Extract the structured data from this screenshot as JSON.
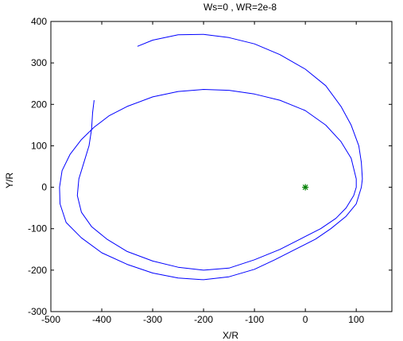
{
  "chart_data": {
    "type": "line",
    "title": "Ws=0    ,    WR=2e-8",
    "xlabel": "X/R",
    "ylabel": "Y/R",
    "xlim": [
      -500,
      170
    ],
    "ylim": [
      -300,
      400
    ],
    "xticks": [
      -500,
      -400,
      -300,
      -200,
      -100,
      0,
      100
    ],
    "yticks": [
      -300,
      -200,
      -100,
      0,
      100,
      200,
      300,
      400
    ],
    "xtick_labels": [
      "-500",
      "-400",
      "-300",
      "-200",
      "-100",
      "0",
      "100"
    ],
    "ytick_labels": [
      "-300",
      "-200",
      "-100",
      "0",
      "100",
      "200",
      "300",
      "400"
    ],
    "grid": false,
    "colors": {
      "orbit": "#0000ff",
      "center_marker": "#008000",
      "axes": "#000000"
    },
    "center_marker": {
      "x": 0,
      "y": 0,
      "symbol": "asterisk"
    },
    "series": [
      {
        "points": [
          [
            -330,
            340
          ],
          [
            -300,
            355
          ],
          [
            -250,
            368
          ],
          [
            -200,
            369
          ],
          [
            -150,
            361
          ],
          [
            -100,
            346
          ],
          [
            -50,
            320
          ],
          [
            0,
            285
          ],
          [
            40,
            245
          ],
          [
            70,
            195
          ],
          [
            90,
            150
          ],
          [
            105,
            100
          ],
          [
            110,
            60
          ],
          [
            112,
            20
          ],
          [
            110,
            0
          ],
          [
            100,
            -40
          ],
          [
            80,
            -70
          ],
          [
            50,
            -100
          ],
          [
            20,
            -125
          ],
          [
            -20,
            -150
          ],
          [
            -60,
            -175
          ],
          [
            -100,
            -198
          ],
          [
            -150,
            -216
          ],
          [
            -200,
            -223
          ],
          [
            -250,
            -219
          ],
          [
            -300,
            -207
          ],
          [
            -350,
            -186
          ],
          [
            -400,
            -158
          ],
          [
            -440,
            -122
          ],
          [
            -470,
            -85
          ],
          [
            -482,
            -40
          ],
          [
            -483,
            0
          ],
          [
            -478,
            40
          ],
          [
            -462,
            80
          ],
          [
            -440,
            115
          ],
          [
            -415,
            145
          ],
          [
            -385,
            173
          ],
          [
            -350,
            195
          ],
          [
            -300,
            218
          ],
          [
            -250,
            231
          ],
          [
            -200,
            236
          ],
          [
            -150,
            234
          ],
          [
            -100,
            225
          ],
          [
            -50,
            210
          ],
          [
            0,
            185
          ],
          [
            40,
            150
          ],
          [
            70,
            110
          ],
          [
            90,
            70
          ],
          [
            100,
            20
          ],
          [
            100,
            0
          ],
          [
            95,
            -20
          ],
          [
            80,
            -50
          ],
          [
            60,
            -75
          ],
          [
            30,
            -100
          ],
          [
            -10,
            -125
          ],
          [
            -50,
            -150
          ],
          [
            -100,
            -175
          ],
          [
            -150,
            -195
          ],
          [
            -200,
            -200
          ],
          [
            -250,
            -193
          ],
          [
            -300,
            -178
          ],
          [
            -350,
            -155
          ],
          [
            -390,
            -125
          ],
          [
            -420,
            -95
          ],
          [
            -440,
            -60
          ],
          [
            -448,
            -20
          ],
          [
            -445,
            20
          ],
          [
            -435,
            60
          ],
          [
            -425,
            100
          ],
          [
            -420,
            140
          ],
          [
            -418,
            180
          ],
          [
            -415,
            210
          ]
        ]
      }
    ]
  }
}
